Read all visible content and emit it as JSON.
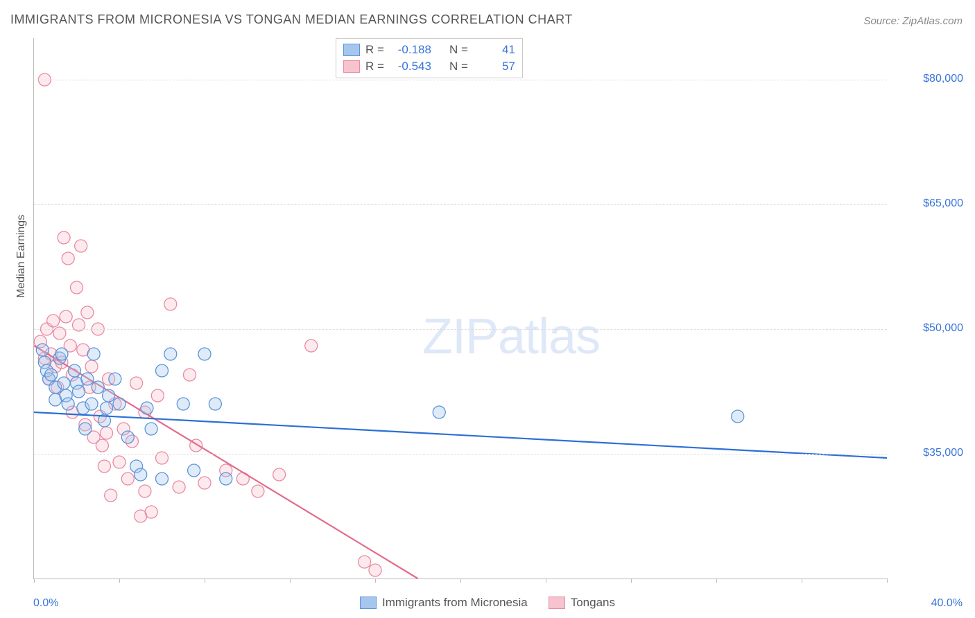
{
  "title": "IMMIGRANTS FROM MICRONESIA VS TONGAN MEDIAN EARNINGS CORRELATION CHART",
  "source": "Source: ZipAtlas.com",
  "y_axis_label": "Median Earnings",
  "watermark_text": "ZIPatlas",
  "x_min_label": "0.0%",
  "x_max_label": "40.0%",
  "colors": {
    "series_a_fill": "#a7c6ee",
    "series_a_stroke": "#5c95da",
    "series_b_fill": "#f6c3ce",
    "series_b_stroke": "#e98ba1",
    "grid": "#dddddd",
    "axis": "#bbbbbb",
    "text": "#555555",
    "value_text": "#3a74d8",
    "trend_a": "#2c6fd6",
    "trend_b": "#e36c8a"
  },
  "chart": {
    "type": "scatter",
    "marker_radius": 9,
    "marker_fill_opacity": 0.35,
    "marker_stroke_width": 1.3,
    "xlim": [
      0,
      40
    ],
    "ylim": [
      20000,
      85000
    ],
    "x_ticks": [
      0,
      4,
      8,
      12,
      16,
      20,
      24,
      28,
      32,
      36,
      40
    ],
    "y_ticks": [
      {
        "value": 35000,
        "label": "$35,000"
      },
      {
        "value": 50000,
        "label": "$50,000"
      },
      {
        "value": 65000,
        "label": "$65,000"
      },
      {
        "value": 80000,
        "label": "$80,000"
      }
    ],
    "series": [
      {
        "key": "micronesia",
        "label": "Immigrants from Micronesia",
        "R": "-0.188",
        "N": "41",
        "trend": {
          "x1": 0,
          "y1": 40000,
          "x2": 40,
          "y2": 34500
        },
        "points": [
          [
            0.4,
            47500
          ],
          [
            0.5,
            46000
          ],
          [
            0.6,
            45000
          ],
          [
            0.7,
            44000
          ],
          [
            0.8,
            44500
          ],
          [
            1.0,
            43000
          ],
          [
            1.0,
            41500
          ],
          [
            1.2,
            46500
          ],
          [
            1.3,
            47000
          ],
          [
            1.4,
            43500
          ],
          [
            1.5,
            42000
          ],
          [
            1.6,
            41000
          ],
          [
            1.9,
            45000
          ],
          [
            2.0,
            43500
          ],
          [
            2.1,
            42500
          ],
          [
            2.3,
            40500
          ],
          [
            2.4,
            38000
          ],
          [
            2.5,
            44000
          ],
          [
            2.7,
            41000
          ],
          [
            2.8,
            47000
          ],
          [
            3.0,
            43000
          ],
          [
            3.3,
            39000
          ],
          [
            3.4,
            40500
          ],
          [
            3.5,
            42000
          ],
          [
            3.8,
            44000
          ],
          [
            4.0,
            41000
          ],
          [
            4.4,
            37000
          ],
          [
            4.8,
            33500
          ],
          [
            5.0,
            32500
          ],
          [
            5.3,
            40500
          ],
          [
            5.5,
            38000
          ],
          [
            6.0,
            32000
          ],
          [
            6.0,
            45000
          ],
          [
            6.4,
            47000
          ],
          [
            7.0,
            41000
          ],
          [
            7.5,
            33000
          ],
          [
            8.0,
            47000
          ],
          [
            8.5,
            41000
          ],
          [
            9.0,
            32000
          ],
          [
            19.0,
            40000
          ],
          [
            33.0,
            39500
          ]
        ]
      },
      {
        "key": "tongans",
        "label": "Tongans",
        "R": "-0.543",
        "N": "57",
        "trend": {
          "x1": 0,
          "y1": 48000,
          "x2": 18,
          "y2": 20000
        },
        "points": [
          [
            0.3,
            48500
          ],
          [
            0.5,
            80000
          ],
          [
            0.5,
            46500
          ],
          [
            0.6,
            50000
          ],
          [
            0.7,
            44000
          ],
          [
            0.8,
            47000
          ],
          [
            0.9,
            51000
          ],
          [
            1.0,
            45500
          ],
          [
            1.1,
            43000
          ],
          [
            1.2,
            49500
          ],
          [
            1.3,
            46000
          ],
          [
            1.4,
            61000
          ],
          [
            1.5,
            51500
          ],
          [
            1.6,
            58500
          ],
          [
            1.7,
            48000
          ],
          [
            1.8,
            44500
          ],
          [
            1.8,
            40000
          ],
          [
            2.0,
            55000
          ],
          [
            2.1,
            50500
          ],
          [
            2.2,
            60000
          ],
          [
            2.3,
            47500
          ],
          [
            2.4,
            38500
          ],
          [
            2.5,
            52000
          ],
          [
            2.6,
            43000
          ],
          [
            2.7,
            45500
          ],
          [
            2.8,
            37000
          ],
          [
            3.0,
            50000
          ],
          [
            3.1,
            39500
          ],
          [
            3.2,
            36000
          ],
          [
            3.3,
            33500
          ],
          [
            3.4,
            37500
          ],
          [
            3.5,
            44000
          ],
          [
            3.6,
            30000
          ],
          [
            3.8,
            41000
          ],
          [
            4.0,
            34000
          ],
          [
            4.2,
            38000
          ],
          [
            4.4,
            32000
          ],
          [
            4.6,
            36500
          ],
          [
            4.8,
            43500
          ],
          [
            5.0,
            27500
          ],
          [
            5.2,
            30500
          ],
          [
            5.2,
            40000
          ],
          [
            5.5,
            28000
          ],
          [
            5.8,
            42000
          ],
          [
            6.0,
            34500
          ],
          [
            6.4,
            53000
          ],
          [
            6.8,
            31000
          ],
          [
            7.3,
            44500
          ],
          [
            7.6,
            36000
          ],
          [
            8.0,
            31500
          ],
          [
            9.0,
            33000
          ],
          [
            9.8,
            32000
          ],
          [
            10.5,
            30500
          ],
          [
            11.5,
            32500
          ],
          [
            13.0,
            48000
          ],
          [
            15.5,
            22000
          ],
          [
            16.0,
            21000
          ]
        ]
      }
    ]
  },
  "correlation_box": {
    "label_R": "R =",
    "label_N": "N ="
  }
}
